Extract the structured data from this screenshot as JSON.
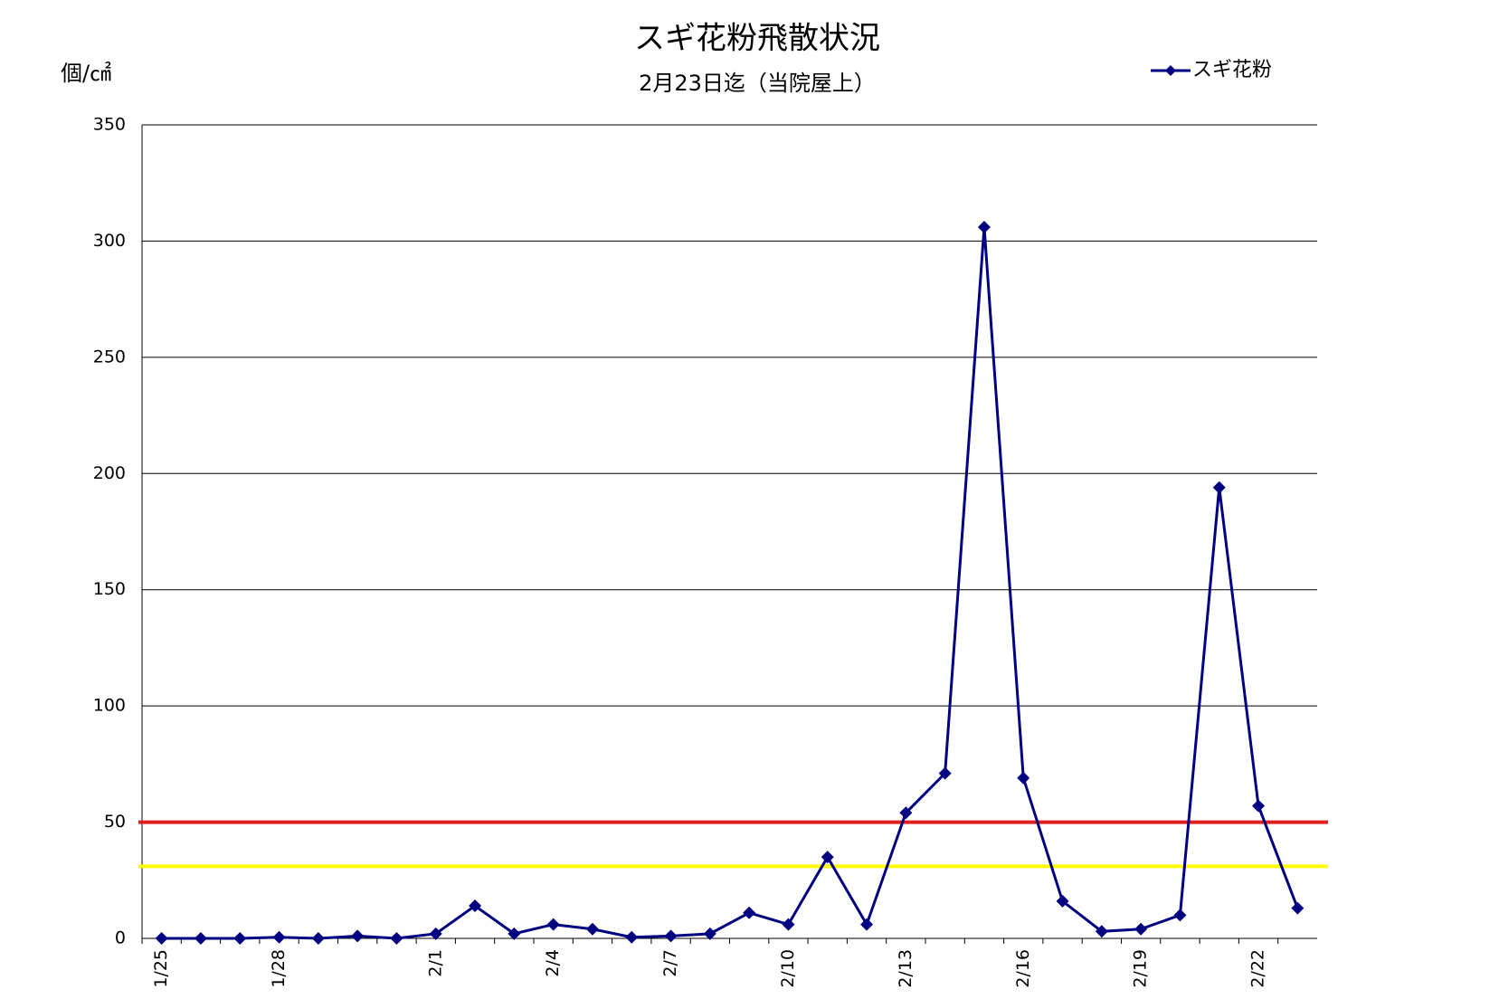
{
  "chart_data": {
    "type": "line",
    "title": "スギ花粉飛散状況",
    "subtitle": "2月23日迄（当院屋上）",
    "y_label": "個/㎠",
    "categories": [
      "1/25",
      null,
      null,
      "1/28",
      null,
      null,
      null,
      "2/1",
      null,
      null,
      "2/4",
      null,
      null,
      "2/7",
      null,
      null,
      "2/10",
      null,
      null,
      "2/13",
      null,
      null,
      "2/16",
      null,
      null,
      "2/19",
      null,
      null,
      "2/22",
      null
    ],
    "series": [
      {
        "name": "スギ花粉",
        "color": "#000080",
        "values": [
          0,
          0,
          0,
          0.5,
          0,
          1,
          0,
          2,
          14,
          2,
          6,
          4,
          0.5,
          1,
          2,
          11,
          6,
          35,
          6,
          54,
          71,
          306,
          69,
          16,
          3,
          4,
          10,
          194,
          57,
          13
        ]
      }
    ],
    "reference_lines": [
      {
        "value": 50,
        "color": "#e02020"
      },
      {
        "value": 31,
        "color": "#ffff00"
      }
    ],
    "ylim": [
      0,
      350
    ],
    "yticks": [
      0,
      50,
      100,
      150,
      200,
      250,
      300,
      350
    ],
    "grid": true,
    "legend": "top-right"
  }
}
